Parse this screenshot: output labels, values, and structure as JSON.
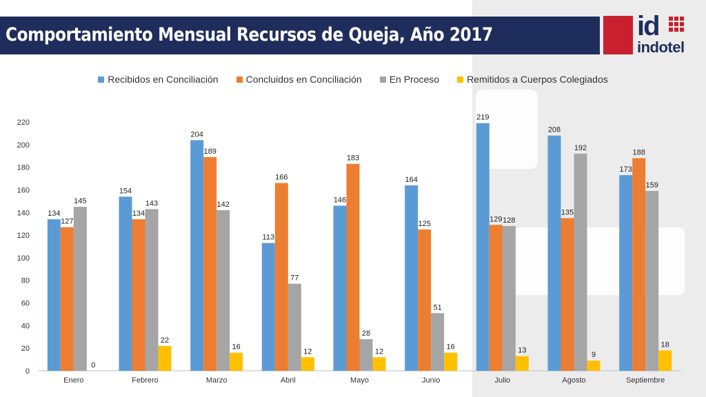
{
  "header": {
    "title": "Comportamiento Mensual Recursos de Queja, Año 2017"
  },
  "logo": {
    "mark": "id",
    "name": "indotel"
  },
  "colors": {
    "title_bar": "#1f2d5c",
    "logo_red": "#c8202f",
    "series": [
      "#5b9bd5",
      "#ed7d31",
      "#a5a5a5",
      "#ffc000"
    ]
  },
  "chart_data": {
    "type": "bar",
    "title": "",
    "xlabel": "",
    "ylabel": "",
    "ylim": [
      0,
      220
    ],
    "yticks": [
      0,
      20,
      40,
      60,
      80,
      100,
      120,
      140,
      160,
      180,
      200,
      220
    ],
    "grid": false,
    "legend_position": "top",
    "categories": [
      "Enero",
      "Febrero",
      "Marzo",
      "Abril",
      "Mayo",
      "Junio",
      "Julio",
      "Agosto",
      "Septiembre"
    ],
    "series": [
      {
        "name": "Recibidos en Conciliación",
        "values": [
          134,
          154,
          204,
          113,
          146,
          164,
          219,
          208,
          173
        ]
      },
      {
        "name": "Concluidos en Conciliación",
        "values": [
          127,
          134,
          189,
          166,
          183,
          125,
          129,
          135,
          188
        ]
      },
      {
        "name": "En Proceso",
        "values": [
          145,
          143,
          142,
          77,
          28,
          51,
          128,
          192,
          159
        ]
      },
      {
        "name": "Remitidos a Cuerpos Colegiados",
        "values": [
          0,
          22,
          16,
          12,
          12,
          16,
          13,
          9,
          18
        ]
      }
    ]
  }
}
